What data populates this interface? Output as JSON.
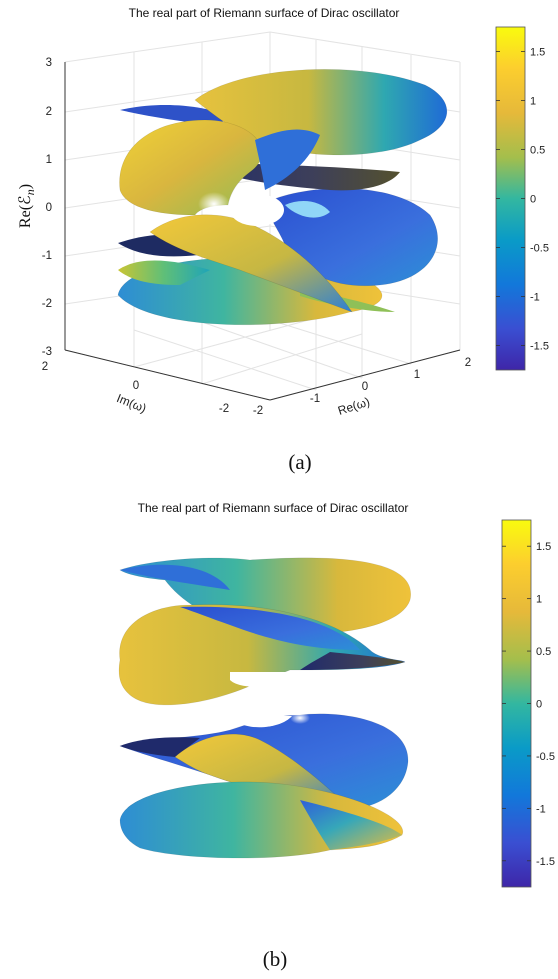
{
  "chart_data": [
    {
      "type": "surface",
      "panel_label": "(a)",
      "title": "The real part of Riemann surface of Dirac oscillator",
      "zlabel": "Re(ℰ",
      "zlabel_sub": "n",
      "zlabel_close": ")",
      "ylabel": "Im(ω)",
      "xlabel": "Re(ω)",
      "z_ticks": [
        "3",
        "2",
        "1",
        "0",
        "-1",
        "-2",
        "-3"
      ],
      "y_ticks": [
        "2",
        "0",
        "-2"
      ],
      "x_ticks": [
        "-2",
        "-1",
        "0",
        "1",
        "2"
      ],
      "xlim": [
        -2,
        2
      ],
      "ylim": [
        -2,
        2
      ],
      "zlim": [
        -3,
        3
      ],
      "grid": true,
      "colorbar": {
        "ticks": [
          "1.5",
          "1",
          "0.5",
          "0",
          "-0.5",
          "-1",
          "-1.5"
        ],
        "range": [
          -1.75,
          1.75
        ],
        "colormap": "parula"
      }
    },
    {
      "type": "surface",
      "panel_label": "(b)",
      "title": "The real part of Riemann surface of Dirac oscillator",
      "axes_visible": false,
      "sheets": 4,
      "colorbar": {
        "ticks": [
          "1.5",
          "1",
          "0.5",
          "0",
          "-0.5",
          "-1",
          "-1.5"
        ],
        "range": [
          -1.75,
          1.75
        ],
        "colormap": "parula"
      }
    }
  ],
  "colors": {
    "parula_top": "#f9fb0e",
    "parula_upper": "#f4be37",
    "parula_mid": "#2fb9a5",
    "parula_lower": "#1a7ed7",
    "parula_bottom": "#3e26a8"
  }
}
